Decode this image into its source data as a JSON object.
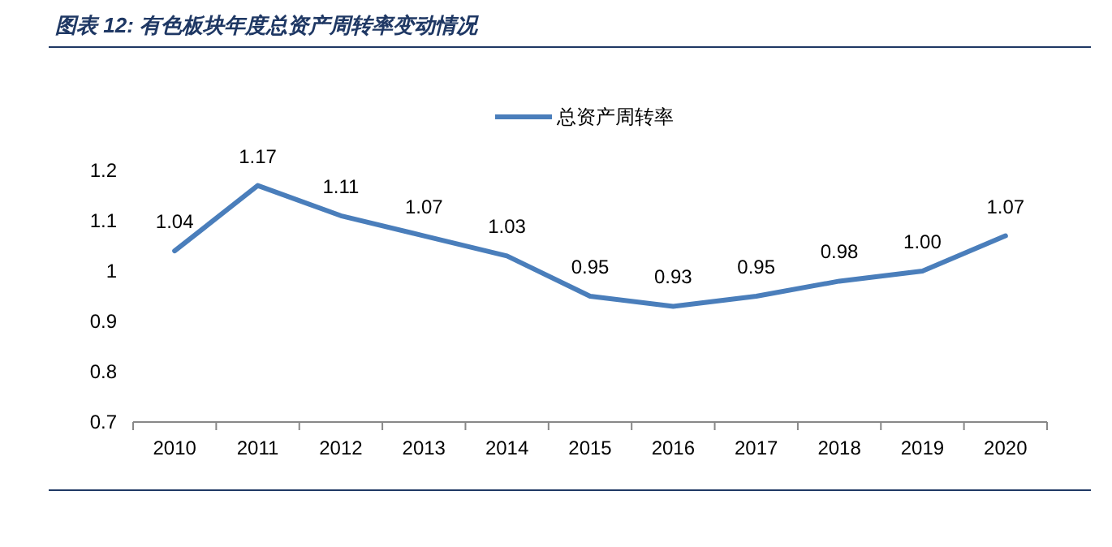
{
  "chart_data": {
    "type": "line",
    "title": "图表 12:  有色板块年度总资产周转率变动情况",
    "categories": [
      "2010",
      "2011",
      "2012",
      "2013",
      "2014",
      "2015",
      "2016",
      "2017",
      "2018",
      "2019",
      "2020"
    ],
    "series": [
      {
        "name": "总资产周转率",
        "color": "#4a7ebb",
        "values": [
          1.04,
          1.17,
          1.11,
          1.07,
          1.03,
          0.95,
          0.93,
          0.95,
          0.98,
          1.0,
          1.07
        ],
        "value_labels": [
          "1.04",
          "1.17",
          "1.11",
          "1.07",
          "1.03",
          "0.95",
          "0.93",
          "0.95",
          "0.98",
          "1.00",
          "1.07"
        ]
      }
    ],
    "ylim": [
      0.7,
      1.2
    ],
    "yticks": [
      0.7,
      0.8,
      0.9,
      1,
      1.1,
      1.2
    ],
    "grid": false,
    "legend": "top",
    "marker": "none",
    "line_style": "solid"
  }
}
